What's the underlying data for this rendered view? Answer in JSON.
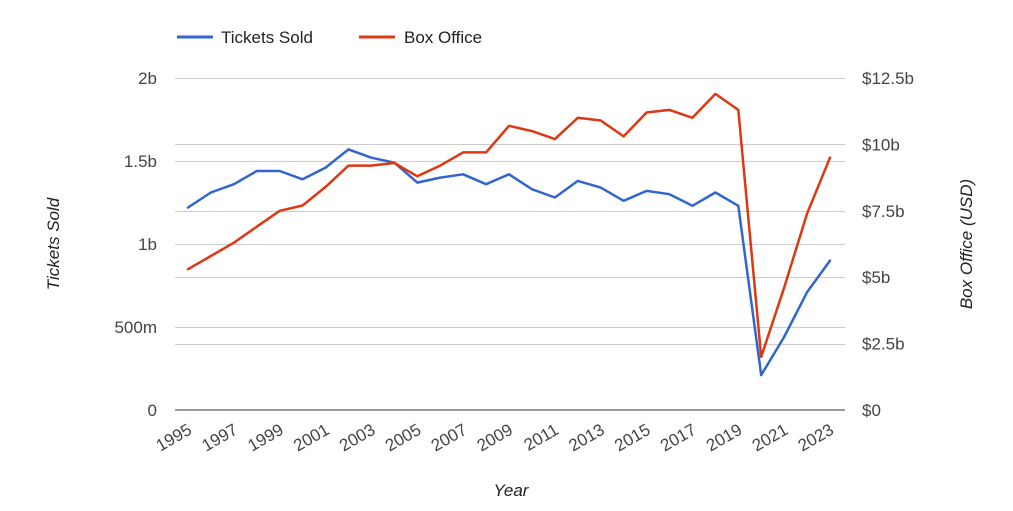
{
  "chart_data": {
    "type": "line",
    "xlabel": "Year",
    "ylabel_left": "Tickets Sold",
    "ylabel_right": "Box Office (USD)",
    "legend_position": "top-left",
    "grid": true,
    "x": [
      1995,
      1996,
      1997,
      1998,
      1999,
      2000,
      2001,
      2002,
      2003,
      2004,
      2005,
      2006,
      2007,
      2008,
      2009,
      2010,
      2011,
      2012,
      2013,
      2014,
      2015,
      2016,
      2017,
      2018,
      2019,
      2020,
      2021,
      2022,
      2023
    ],
    "x_tick_labels": [
      "1995",
      "1997",
      "1999",
      "2001",
      "2003",
      "2005",
      "2007",
      "2009",
      "2011",
      "2013",
      "2015",
      "2017",
      "2019",
      "2021",
      "2023"
    ],
    "left_axis": {
      "ylim": [
        0,
        2000000000
      ],
      "ticks": [
        0,
        500000000,
        1000000000,
        1500000000,
        2000000000
      ],
      "tick_labels": [
        "0",
        "500m",
        "1b",
        "1.5b",
        "2b"
      ]
    },
    "right_axis": {
      "ylim": [
        0,
        12500000000
      ],
      "ticks": [
        0,
        2500000000,
        5000000000,
        7500000000,
        10000000000,
        12500000000
      ],
      "tick_labels": [
        "$0",
        "$2.5b",
        "$5b",
        "$7.5b",
        "$10b",
        "$12.5b"
      ]
    },
    "series": [
      {
        "name": "Tickets Sold",
        "axis": "left",
        "color": "#3366cc",
        "values": [
          1220000000,
          1310000000,
          1360000000,
          1440000000,
          1440000000,
          1390000000,
          1460000000,
          1570000000,
          1520000000,
          1490000000,
          1370000000,
          1400000000,
          1420000000,
          1360000000,
          1420000000,
          1330000000,
          1280000000,
          1380000000,
          1340000000,
          1260000000,
          1320000000,
          1300000000,
          1230000000,
          1310000000,
          1230000000,
          210000000,
          440000000,
          710000000,
          900000000
        ]
      },
      {
        "name": "Box Office",
        "axis": "right",
        "color": "#dc3912",
        "values": [
          5300000000,
          5800000000,
          6300000000,
          6900000000,
          7500000000,
          7700000000,
          8400000000,
          9200000000,
          9200000000,
          9300000000,
          8800000000,
          9200000000,
          9700000000,
          9700000000,
          10700000000,
          10500000000,
          10200000000,
          11000000000,
          10900000000,
          10300000000,
          11200000000,
          11300000000,
          11000000000,
          11900000000,
          11300000000,
          2000000000,
          4600000000,
          7400000000,
          9500000000
        ]
      }
    ]
  }
}
